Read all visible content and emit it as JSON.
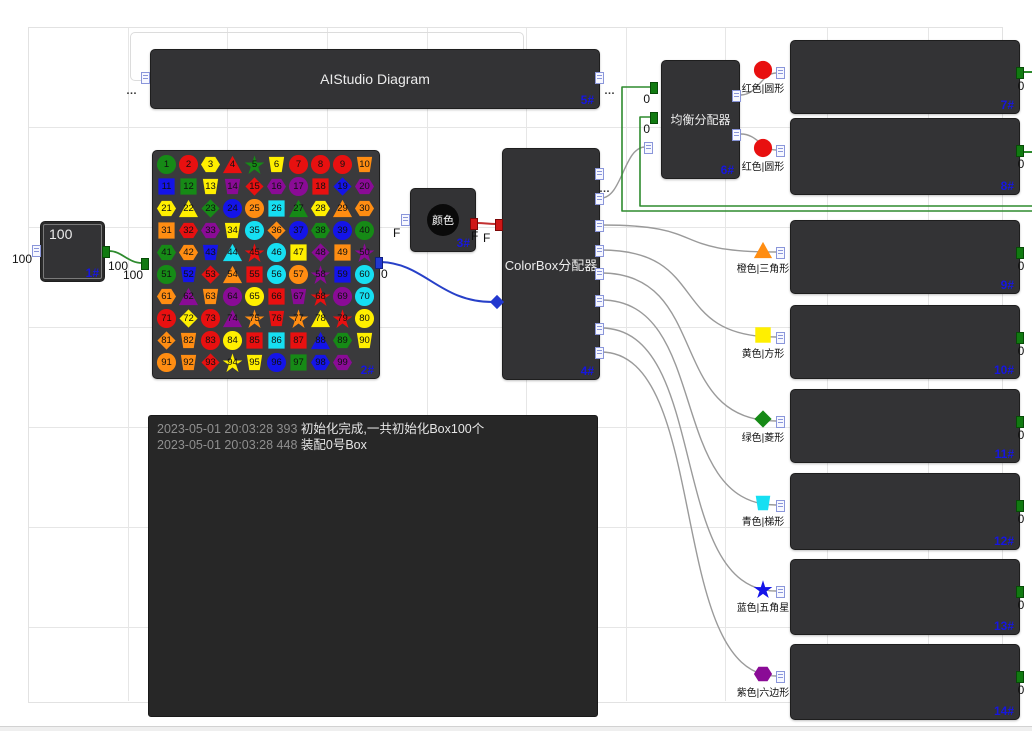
{
  "palette": {
    "red": "#e81010",
    "green": "#168a16",
    "yellow": "#ffef00",
    "orange": "#ff8d12",
    "purple": "#8a0b96",
    "blue": "#1414e8",
    "cyan": "#16dff2",
    "node_fill": "#333335",
    "badge_color": "#1616e0",
    "wire_green": "#2e8b2e",
    "wire_gray": "#9a9a9a",
    "wire_blue": "#2740c8",
    "wire_red": "#c23030"
  },
  "title_node": {
    "id": "5#",
    "title": "AIStudio Diagram",
    "left_port_label": "…",
    "right_port_label": "…"
  },
  "source_node": {
    "id": "1#",
    "value": "100",
    "left_label": "100",
    "out_label": "100"
  },
  "grid_node": {
    "id": "2#",
    "in_label": "100",
    "out_label": "0",
    "cells": [
      "green|circle",
      "red|circle",
      "yellow|hexagon",
      "red|triangle",
      "green|star",
      "yellow|trapezoid",
      "red|circle",
      "red|circle",
      "red|circle",
      "orange|trapezoid",
      "blue|square",
      "green|square",
      "yellow|trapezoid",
      "purple|trapezoid",
      "red|diamond",
      "purple|hexagon",
      "purple|circle",
      "red|square",
      "blue|diamond",
      "purple|hexagon",
      "yellow|hexagon",
      "yellow|triangle",
      "green|diamond",
      "blue|circle",
      "orange|circle",
      "cyan|square",
      "green|triangle",
      "yellow|hexagon",
      "orange|triangle",
      "orange|hexagon",
      "orange|square",
      "red|hexagon",
      "purple|hexagon",
      "yellow|trapezoid",
      "cyan|circle",
      "orange|diamond",
      "blue|circle",
      "green|hexagon",
      "blue|circle",
      "green|circle",
      "green|hexagon",
      "orange|hexagon",
      "blue|trapezoid",
      "cyan|triangle",
      "red|star",
      "cyan|circle",
      "yellow|square",
      "purple|diamond",
      "orange|square",
      "purple|star",
      "green|circle",
      "blue|trapezoid",
      "red|diamond",
      "orange|triangle",
      "red|square",
      "cyan|circle",
      "orange|circle",
      "purple|star",
      "blue|square",
      "cyan|circle",
      "orange|hexagon",
      "purple|triangle",
      "orange|trapezoid",
      "purple|circle",
      "yellow|circle",
      "red|square",
      "purple|trapezoid",
      "red|star",
      "purple|circle",
      "cyan|circle",
      "red|circle",
      "yellow|diamond",
      "red|circle",
      "purple|triangle",
      "orange|star",
      "red|trapezoid",
      "orange|star",
      "yellow|triangle",
      "red|star",
      "yellow|circle",
      "orange|diamond",
      "orange|trapezoid",
      "red|circle",
      "yellow|circle",
      "red|square",
      "cyan|square",
      "red|square",
      "blue|triangle",
      "green|hexagon",
      "yellow|trapezoid",
      "orange|circle",
      "orange|trapezoid",
      "red|diamond",
      "yellow|star",
      "yellow|trapezoid",
      "blue|circle",
      "green|square",
      "blue|hexagon",
      "purple|hexagon"
    ]
  },
  "color_node": {
    "id": "3#",
    "title": "颜色",
    "left_label": "F",
    "out_label": "F"
  },
  "colorbox_node": {
    "id": "4#",
    "title": "ColorBox分配器",
    "in_label": "F",
    "ellipsis": "…"
  },
  "balancer_node": {
    "id": "6#",
    "title": "均衡分配器",
    "in_labels": [
      "0",
      "0"
    ]
  },
  "output_nodes": [
    {
      "id": "7#",
      "icon": "red|circle",
      "label": "红色|圆形",
      "count": "0"
    },
    {
      "id": "8#",
      "icon": "red|circle",
      "label": "红色|圆形",
      "count": "0"
    },
    {
      "id": "9#",
      "icon": "orange|triangle",
      "label": "橙色|三角形",
      "count": "0"
    },
    {
      "id": "10#",
      "icon": "yellow|square",
      "label": "黄色|方形",
      "count": "0"
    },
    {
      "id": "11#",
      "icon": "green|diamond",
      "label": "绿色|菱形",
      "count": "0"
    },
    {
      "id": "12#",
      "icon": "cyan|trapezoid",
      "label": "青色|梯形",
      "count": "0"
    },
    {
      "id": "13#",
      "icon": "blue|star",
      "label": "蓝色|五角星",
      "count": "0"
    },
    {
      "id": "14#",
      "icon": "purple|hexagon",
      "label": "紫色|六边形",
      "count": "0"
    }
  ],
  "console_node": {
    "lines": [
      {
        "time": "2023-05-01 20:03:28 393",
        "message": "初始化完成,一共初始化Box100个"
      },
      {
        "time": "2023-05-01 20:03:28 448",
        "message": "装配0号Box"
      }
    ]
  }
}
